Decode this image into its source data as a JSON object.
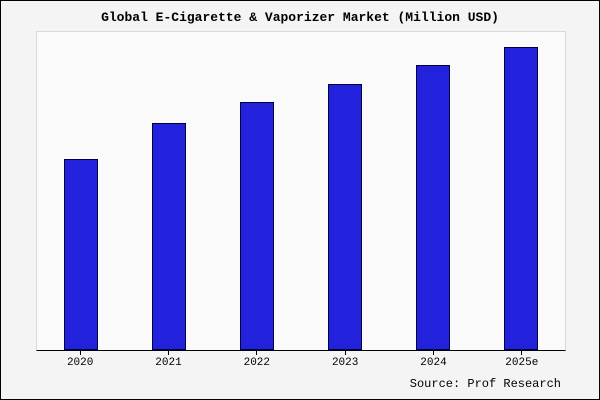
{
  "chart_data": {
    "type": "bar",
    "title": "Global E-Cigarette & Vaporizer Market (Million USD)",
    "categories": [
      "2020",
      "2021",
      "2022",
      "2023",
      "2024",
      "2025e"
    ],
    "values": [
      63,
      75,
      82,
      88,
      94,
      100
    ],
    "xlabel": "",
    "ylabel": "",
    "ylim": [
      0,
      105
    ],
    "grid": false,
    "legend_position": "none",
    "bar_color": "#2222dd",
    "bar_edge_color": "#000040",
    "note": "no y-axis tick labels shown; values estimated relative to tallest bar = 100"
  },
  "source": "Source: Prof Research",
  "colors": {
    "figure_background": "#f4f4f4",
    "plot_background": "#fafafa",
    "frame_border": "#000000"
  }
}
